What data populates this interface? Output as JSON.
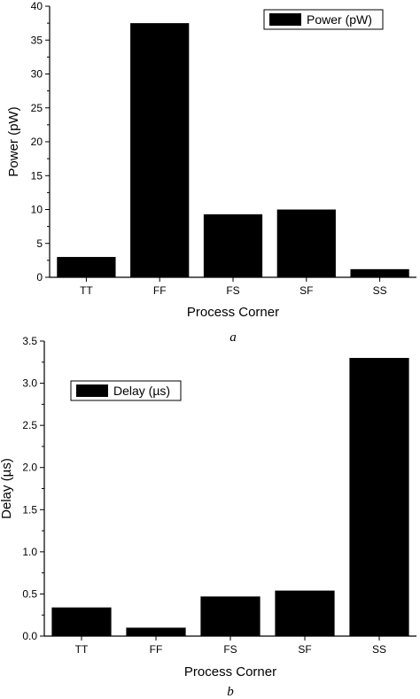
{
  "chart_data": [
    {
      "type": "bar",
      "categories": [
        "TT",
        "FF",
        "FS",
        "SF",
        "SS"
      ],
      "values": [
        3.0,
        37.5,
        9.3,
        10.0,
        1.2
      ],
      "series": [
        {
          "name": "Power (pW)",
          "values": [
            3.0,
            37.5,
            9.3,
            10.0,
            1.2
          ]
        }
      ],
      "xlabel": "Process Corner",
      "ylabel": "Power (pW)",
      "ylim": [
        0,
        40
      ],
      "yticks": [
        "0",
        "5",
        "10",
        "15",
        "20",
        "25",
        "30",
        "35",
        "40"
      ],
      "ytick_values": [
        0,
        5,
        10,
        15,
        20,
        25,
        30,
        35,
        40
      ],
      "legend": {
        "label": "Power (pW)",
        "placement": "top-right"
      },
      "caption": "a",
      "bar_color": "#000000"
    },
    {
      "type": "bar",
      "categories": [
        "TT",
        "FF",
        "FS",
        "SF",
        "SS"
      ],
      "values": [
        0.34,
        0.1,
        0.47,
        0.54,
        3.3
      ],
      "series": [
        {
          "name": "Delay (µs)",
          "values": [
            0.34,
            0.1,
            0.47,
            0.54,
            3.3
          ]
        }
      ],
      "xlabel": "Process Corner",
      "ylabel": "Delay (µs)",
      "ylim": [
        0,
        3.5
      ],
      "yticks": [
        "0.0",
        "0.5",
        "1.0",
        "1.5",
        "2.0",
        "2.5",
        "3.0",
        "3.5"
      ],
      "ytick_values": [
        0,
        0.5,
        1.0,
        1.5,
        2.0,
        2.5,
        3.0,
        3.5
      ],
      "legend": {
        "label": "Delay (µs)",
        "placement": "top-left"
      },
      "caption": "b",
      "bar_color": "#000000"
    }
  ]
}
